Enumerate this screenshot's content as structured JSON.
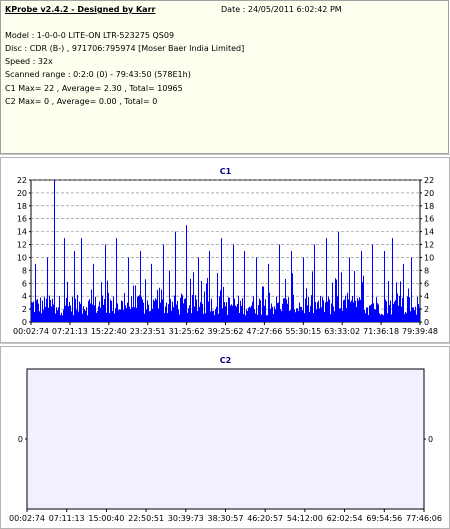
{
  "info": {
    "title": "KProbe v2.4.2 - Designed by Karr",
    "date": "Date : 24/05/2011 6:02:42 PM",
    "model": "Model : 1-0-0-0 LITE-ON LTR-523275       QS09",
    "disc": "Disc : CDR (B-) , 971706:795974 [Moser Baer India Limited]",
    "speed": "Speed : 32x",
    "scanned": "Scanned range : 0:2:0 (0) - 79:43:50 (578E1h)",
    "c1": "C1 Max= 22 , Average= 2.30 , Total= 10965",
    "c2": "C2 Max= 0 , Average= 0.00 , Total= 0"
  },
  "colors": {
    "bar": "#0000ff",
    "c1_plot_bg": "#ffffff",
    "c2_plot_bg": "#f0f0ff",
    "grid": "#808080"
  },
  "chart_data": [
    {
      "type": "bar",
      "title": "C1",
      "ylim": [
        0,
        22
      ],
      "y_ticks": [
        "0",
        "2",
        "4",
        "6",
        "8",
        "10",
        "12",
        "14",
        "16",
        "18",
        "20",
        "22"
      ],
      "x_ticks": [
        "00:02:74",
        "07:21:13",
        "15:22:40",
        "23:23:51",
        "31:25:62",
        "39:25:62",
        "47:27:66",
        "55:30:15",
        "63:33:02",
        "71:36:18",
        "79:39:48"
      ],
      "grid": true,
      "max": 22,
      "average": 2.3,
      "spikes": [
        {
          "x": 0.01,
          "y": 9
        },
        {
          "x": 0.04,
          "y": 10
        },
        {
          "x": 0.06,
          "y": 22
        },
        {
          "x": 0.085,
          "y": 13
        },
        {
          "x": 0.11,
          "y": 11
        },
        {
          "x": 0.13,
          "y": 13
        },
        {
          "x": 0.16,
          "y": 9
        },
        {
          "x": 0.19,
          "y": 12
        },
        {
          "x": 0.22,
          "y": 13
        },
        {
          "x": 0.25,
          "y": 10
        },
        {
          "x": 0.28,
          "y": 11
        },
        {
          "x": 0.31,
          "y": 9
        },
        {
          "x": 0.34,
          "y": 12
        },
        {
          "x": 0.37,
          "y": 14
        },
        {
          "x": 0.4,
          "y": 15
        },
        {
          "x": 0.43,
          "y": 10
        },
        {
          "x": 0.46,
          "y": 11
        },
        {
          "x": 0.49,
          "y": 13
        },
        {
          "x": 0.52,
          "y": 12
        },
        {
          "x": 0.55,
          "y": 11
        },
        {
          "x": 0.58,
          "y": 10
        },
        {
          "x": 0.61,
          "y": 9
        },
        {
          "x": 0.64,
          "y": 12
        },
        {
          "x": 0.67,
          "y": 11
        },
        {
          "x": 0.7,
          "y": 10
        },
        {
          "x": 0.73,
          "y": 12
        },
        {
          "x": 0.76,
          "y": 13
        },
        {
          "x": 0.79,
          "y": 14
        },
        {
          "x": 0.82,
          "y": 10
        },
        {
          "x": 0.85,
          "y": 11
        },
        {
          "x": 0.88,
          "y": 12
        },
        {
          "x": 0.91,
          "y": 11
        },
        {
          "x": 0.93,
          "y": 13
        },
        {
          "x": 0.96,
          "y": 9
        },
        {
          "x": 0.98,
          "y": 10
        }
      ]
    },
    {
      "type": "bar",
      "title": "C2",
      "ylim": [
        -1,
        1
      ],
      "y_ticks": [
        "0"
      ],
      "x_ticks": [
        "00:02:74",
        "07:11:13",
        "15:00:40",
        "22:50:51",
        "30:39:73",
        "38:30:57",
        "46:20:57",
        "54:12:00",
        "62:02:54",
        "69:54:56",
        "77:46:06"
      ],
      "grid": false,
      "max": 0,
      "average": 0
    }
  ]
}
